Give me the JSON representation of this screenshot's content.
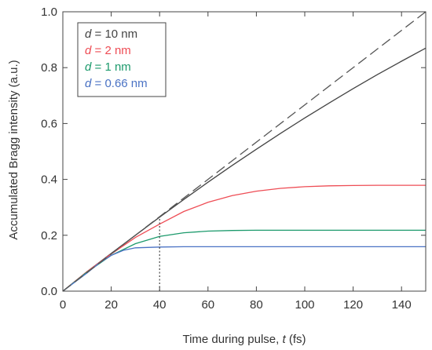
{
  "chart_data": {
    "type": "line",
    "xlabel_prefix": "Time during pulse, ",
    "xlabel_var": "t",
    "xlabel_suffix": " (fs)",
    "ylabel": "Accumulated Bragg intensity (a.u.)",
    "xlim": [
      0,
      150
    ],
    "ylim": [
      0,
      1.0
    ],
    "x_ticks": [
      0,
      20,
      40,
      60,
      80,
      100,
      120,
      140
    ],
    "y_ticks": [
      0.0,
      0.2,
      0.4,
      0.6,
      0.8,
      1.0
    ],
    "x_tick_labels": [
      "0",
      "20",
      "40",
      "60",
      "80",
      "100",
      "120",
      "140"
    ],
    "y_tick_labels": [
      "0.0",
      "0.2",
      "0.4",
      "0.6",
      "0.8",
      "1.0"
    ],
    "grid": false,
    "legend_position": "top-left",
    "legend_var": "d",
    "legend_eq": " = ",
    "series": [
      {
        "name": "d = 10 nm",
        "label_value": "10 nm",
        "color": "#444444",
        "style": "solid",
        "x": [
          0,
          10,
          20,
          30,
          40,
          50,
          60,
          70,
          80,
          90,
          100,
          110,
          120,
          130,
          140,
          150
        ],
        "y": [
          0,
          0.07,
          0.135,
          0.2,
          0.265,
          0.328,
          0.39,
          0.45,
          0.508,
          0.565,
          0.62,
          0.673,
          0.725,
          0.775,
          0.823,
          0.87
        ]
      },
      {
        "name": "d = 2 nm",
        "label_value": "2 nm",
        "color": "#ee4d55",
        "style": "solid",
        "x": [
          0,
          10,
          20,
          30,
          40,
          50,
          60,
          70,
          80,
          90,
          100,
          110,
          120,
          130,
          140,
          150
        ],
        "y": [
          0,
          0.07,
          0.133,
          0.192,
          0.24,
          0.285,
          0.318,
          0.342,
          0.358,
          0.368,
          0.374,
          0.377,
          0.378,
          0.379,
          0.379,
          0.379
        ]
      },
      {
        "name": "d = 1 nm",
        "label_value": "1 nm",
        "color": "#1c9a6c",
        "style": "solid",
        "x": [
          0,
          10,
          20,
          30,
          40,
          50,
          60,
          70,
          80,
          90,
          100,
          110,
          120,
          130,
          140,
          150
        ],
        "y": [
          0,
          0.068,
          0.128,
          0.17,
          0.196,
          0.209,
          0.215,
          0.217,
          0.218,
          0.218,
          0.218,
          0.218,
          0.218,
          0.218,
          0.218,
          0.218
        ]
      },
      {
        "name": "d = 0.66 nm",
        "label_value": "0.66 nm",
        "color": "#4a72c4",
        "style": "solid",
        "x": [
          0,
          10,
          15,
          20,
          25,
          30,
          40,
          50,
          60,
          80,
          100,
          120,
          150
        ],
        "y": [
          0,
          0.065,
          0.1,
          0.128,
          0.146,
          0.155,
          0.158,
          0.159,
          0.159,
          0.159,
          0.159,
          0.159,
          0.159
        ]
      },
      {
        "name": "linear reference",
        "color": "#555555",
        "style": "dashed",
        "x": [
          0,
          150
        ],
        "y": [
          0,
          1.0
        ]
      }
    ],
    "annotations": [
      {
        "type": "vertical-dotted-line",
        "x": 40,
        "y_from": 0,
        "y_to": 0.265,
        "color": "#333333"
      }
    ]
  }
}
